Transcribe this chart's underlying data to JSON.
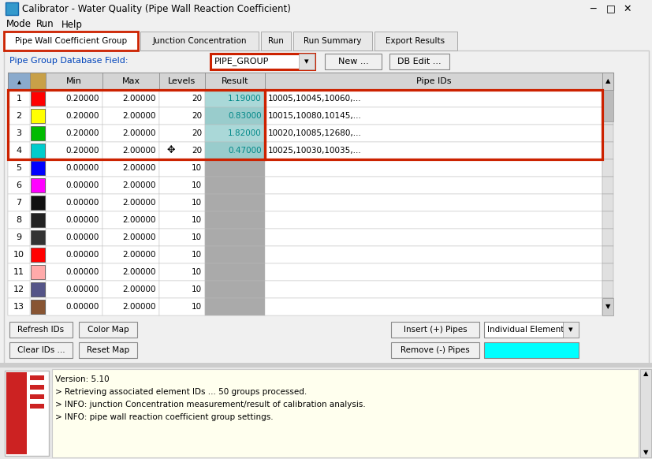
{
  "title": "Calibrator - Water Quality (Pipe Wall Reaction Coefficient)",
  "menu_items": [
    "Mode",
    "Run",
    "Help"
  ],
  "tabs": [
    "Pipe Wall Coefficient Group",
    "Junction Concentration",
    "Run",
    "Run Summary",
    "Export Results"
  ],
  "active_tab": "Pipe Wall Coefficient Group",
  "pipe_group_label": "Pipe Group Database Field:",
  "pipe_group_value": "PIPE_GROUP",
  "buttons_top": [
    "New ...",
    "DB Edit ..."
  ],
  "row_colors": [
    "#ff0000",
    "#ffff00",
    "#00bb00",
    "#00cccc",
    "#0000ff",
    "#ff00ff",
    "#111111",
    "#222222",
    "#333333",
    "#ff0000",
    "#ffaaaa",
    "#555588",
    "#885533"
  ],
  "rows": [
    {
      "num": 1,
      "min": "0.20000",
      "max": "2.00000",
      "levels": "20",
      "result": "1.19000",
      "pipe_ids": "10005,10045,10060,..."
    },
    {
      "num": 2,
      "min": "0.20000",
      "max": "2.00000",
      "levels": "20",
      "result": "0.83000",
      "pipe_ids": "10015,10080,10145,..."
    },
    {
      "num": 3,
      "min": "0.20000",
      "max": "2.00000",
      "levels": "20",
      "result": "1.82000",
      "pipe_ids": "10020,10085,12680,..."
    },
    {
      "num": 4,
      "min": "0.20000",
      "max": "2.00000",
      "levels": "20",
      "result": "0.47000",
      "pipe_ids": "10025,10030,10035,..."
    },
    {
      "num": 5,
      "min": "0.00000",
      "max": "2.00000",
      "levels": "10",
      "result": "",
      "pipe_ids": ""
    },
    {
      "num": 6,
      "min": "0.00000",
      "max": "2.00000",
      "levels": "10",
      "result": "",
      "pipe_ids": ""
    },
    {
      "num": 7,
      "min": "0.00000",
      "max": "2.00000",
      "levels": "10",
      "result": "",
      "pipe_ids": ""
    },
    {
      "num": 8,
      "min": "0.00000",
      "max": "2.00000",
      "levels": "10",
      "result": "",
      "pipe_ids": ""
    },
    {
      "num": 9,
      "min": "0.00000",
      "max": "2.00000",
      "levels": "10",
      "result": "",
      "pipe_ids": ""
    },
    {
      "num": 10,
      "min": "0.00000",
      "max": "2.00000",
      "levels": "10",
      "result": "",
      "pipe_ids": ""
    },
    {
      "num": 11,
      "min": "0.00000",
      "max": "2.00000",
      "levels": "10",
      "result": "",
      "pipe_ids": ""
    },
    {
      "num": 12,
      "min": "0.00000",
      "max": "2.00000",
      "levels": "10",
      "result": "",
      "pipe_ids": ""
    },
    {
      "num": 13,
      "min": "0.00000",
      "max": "2.00000",
      "levels": "10",
      "result": "",
      "pipe_ids": ""
    }
  ],
  "dropdown_value": "Individual Element",
  "cyan_box_color": "#00ffff",
  "log_text": [
    "Version: 5.10",
    "> Retrieving associated element IDs ... 50 groups processed.",
    "> INFO: junction Concentration measurement/result of calibration analysis.",
    "> INFO: pipe wall reaction coefficient group settings."
  ],
  "bg_color": "#f0f0f0",
  "tab_highlight_color": "#cc2200",
  "pipe_group_highlight_color": "#cc2200",
  "row_highlight_color": "#cc2200",
  "log_bg": "#ffffee",
  "result_text_color": "#008888",
  "result_bg": "#99dddd"
}
